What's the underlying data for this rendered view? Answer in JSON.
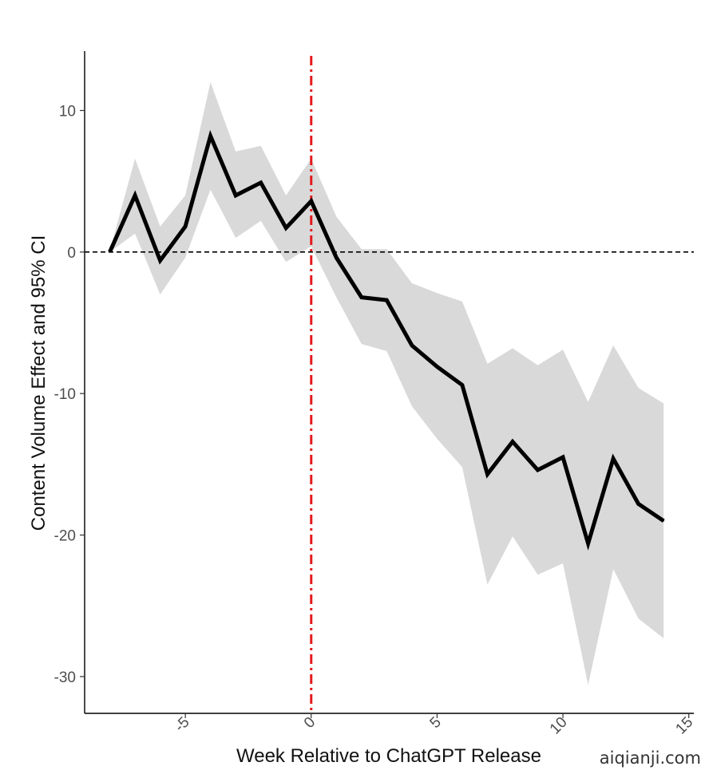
{
  "chart_data": {
    "type": "line",
    "title": "",
    "xlabel": "Week Relative to ChatGPT Release",
    "ylabel": "Content Volume Effect and 95% CI",
    "xlim": [
      -9,
      15.2
    ],
    "ylim": [
      -32.6,
      14.2
    ],
    "x_ticks": [
      -5,
      0,
      5,
      10,
      15
    ],
    "y_ticks": [
      -30,
      -20,
      -10,
      0,
      10
    ],
    "x": [
      -8,
      -7,
      -6,
      -5,
      -4,
      -3,
      -2,
      -1,
      0,
      1,
      2,
      3,
      4,
      5,
      6,
      7,
      8,
      9,
      10,
      11,
      12,
      13,
      14
    ],
    "series": [
      {
        "values": [
          0,
          4.0,
          -0.6,
          1.8,
          8.2,
          4.0,
          4.9,
          1.7,
          3.6,
          -0.4,
          -3.2,
          -3.4,
          -6.6,
          -8.1,
          -9.4,
          -15.7,
          -13.4,
          -15.4,
          -14.5,
          -20.6,
          -14.6,
          -17.8,
          -19.0
        ]
      }
    ],
    "ci_upper": [
      0.1,
      6.6,
      1.8,
      4.0,
      12.0,
      7.1,
      7.5,
      4.0,
      6.6,
      2.5,
      0.2,
      0.2,
      -2.2,
      -2.9,
      -3.5,
      -7.9,
      -6.8,
      -8.0,
      -6.9,
      -10.6,
      -6.6,
      -9.6,
      -10.7
    ],
    "ci_lower": [
      0,
      1.3,
      -3.0,
      -0.4,
      4.4,
      1.0,
      2.2,
      -0.7,
      0.4,
      -3.2,
      -6.5,
      -7.0,
      -10.9,
      -13.2,
      -15.2,
      -23.5,
      -20.1,
      -22.8,
      -22.0,
      -30.6,
      -22.4,
      -25.9,
      -27.3
    ],
    "reference_lines": {
      "horizontal_y": 0,
      "vertical_x": 0
    },
    "colors": {
      "line": "#000000",
      "ci_band": "#d9d9d9",
      "vertical_reference": "#e41a1c",
      "horizontal_reference": "#000000"
    },
    "grid": false,
    "legend": "none"
  },
  "watermark": "aiqianji.com"
}
